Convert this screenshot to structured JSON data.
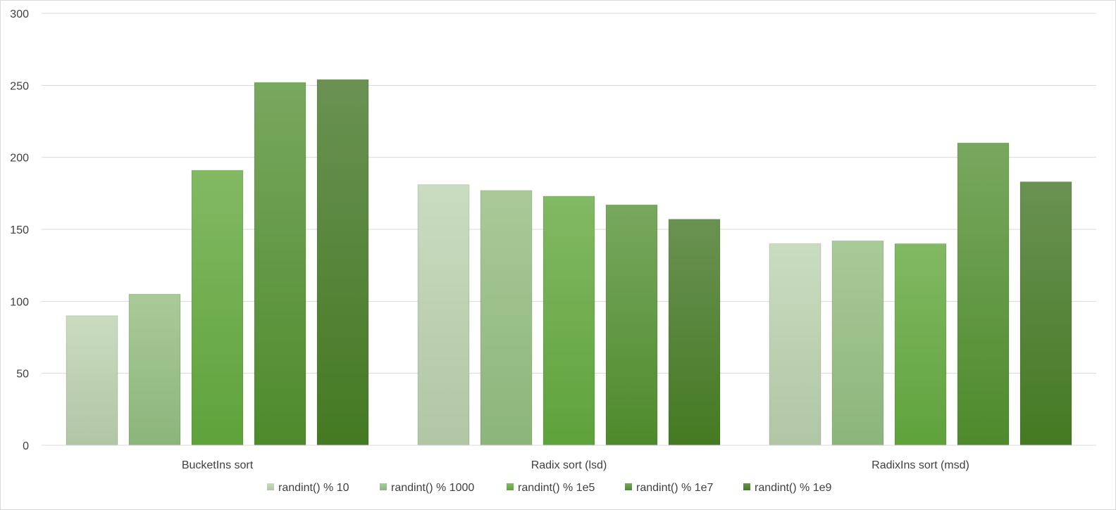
{
  "chart_data": {
    "type": "bar",
    "title": "",
    "xlabel": "",
    "ylabel": "",
    "ylim": [
      0,
      300
    ],
    "yticks": [
      0,
      50,
      100,
      150,
      200,
      250,
      300
    ],
    "grid": true,
    "legend_position": "bottom",
    "categories": [
      "BucketIns sort",
      "Radix sort (lsd)",
      "RadixIns sort (msd)"
    ],
    "series": [
      {
        "name": "randint() % 10",
        "values": [
          90,
          181,
          140
        ],
        "color_top": "#cadcc0",
        "color_bottom": "#b0c6a4"
      },
      {
        "name": "randint() % 1000",
        "values": [
          105,
          177,
          142
        ],
        "color_top": "#a9ca98",
        "color_bottom": "#8cb57a"
      },
      {
        "name": "randint() % 1e5",
        "values": [
          191,
          173,
          140
        ],
        "color_top": "#82b964",
        "color_bottom": "#5ea23a"
      },
      {
        "name": "randint() % 1e7",
        "values": [
          252,
          167,
          210
        ],
        "color_top": "#78a85e",
        "color_bottom": "#4e8a2c"
      },
      {
        "name": "randint() % 1e9",
        "values": [
          254,
          157,
          183
        ],
        "color_top": "#6a9152",
        "color_bottom": "#447a22"
      }
    ]
  }
}
